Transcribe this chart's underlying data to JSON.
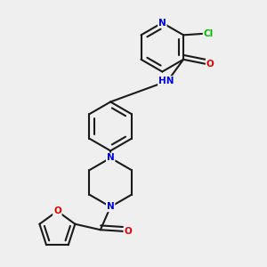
{
  "background_color": "#efefef",
  "bond_color": "#1a1a1a",
  "atom_colors": {
    "N": "#0000dd",
    "O": "#dd0000",
    "Cl": "#00bb00",
    "H": "#447788",
    "C": "#1a1a1a"
  },
  "font_size": 7.5
}
